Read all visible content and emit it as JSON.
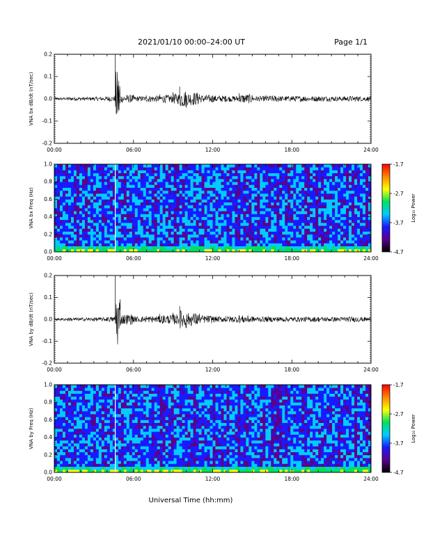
{
  "header": {
    "title": "2021/01/10  00:00–24:00 UT",
    "page": "Page 1/1"
  },
  "x_axis": {
    "ticks": [
      "00:00",
      "06:00",
      "12:00",
      "18:00",
      "24:00"
    ],
    "title": "Universal Time (hh:mm)"
  },
  "colorbar": {
    "label": "Log₁₀ Power",
    "ticks": [
      "-1.7",
      "-2.7",
      "-3.7",
      "-4.7"
    ],
    "range": [
      -4.7,
      -1.7
    ],
    "colors": [
      "#000000",
      "#5a0090",
      "#1a1aff",
      "#00ccff",
      "#00e060",
      "#ffff00",
      "#ff8800",
      "#ff0000"
    ]
  },
  "chart_data": [
    {
      "type": "line",
      "panel": "dbdt_bx",
      "ylabel": "VNA bx dB/dt (nT/sec)",
      "yticks": [
        "0.2",
        "0.1",
        "0.0",
        "-0.1",
        "-0.2"
      ],
      "xlim": [
        0,
        24
      ],
      "ylim": [
        -0.2,
        0.2
      ],
      "series": [
        {
          "values_note": "x in hours UT, y in nT/sec",
          "x": [
            0,
            1,
            2,
            3,
            4,
            4.6,
            4.62,
            5,
            6,
            7,
            8,
            9,
            9.5,
            10,
            11,
            12,
            13,
            14,
            15,
            16,
            17,
            18,
            19,
            20,
            21,
            22,
            23,
            24
          ],
          "y": [
            0.0,
            0.004,
            -0.003,
            0.005,
            0.01,
            0.015,
            0.2,
            -0.02,
            0.01,
            0.015,
            0.02,
            0.03,
            0.055,
            -0.04,
            0.02,
            0.015,
            0.012,
            0.025,
            0.01,
            0.015,
            0.01,
            0.012,
            0.01,
            0.01,
            0.008,
            0.01,
            0.008,
            0.005
          ]
        }
      ]
    },
    {
      "type": "heatmap",
      "panel": "spec_bx",
      "ylabel": "VNA bx Freq (Hz)",
      "yticks": [
        "1.0",
        "0.8",
        "0.6",
        "0.4",
        "0.2",
        "0.0"
      ],
      "xlim": [
        0,
        24
      ],
      "ylim": [
        0.0,
        1.0
      ],
      "zlim": [
        -4.7,
        -1.7
      ]
    },
    {
      "type": "line",
      "panel": "dbdt_by",
      "ylabel": "VNA by dB/dt (nT/sec)",
      "yticks": [
        "0.2",
        "0.1",
        "0.0",
        "-0.1",
        "-0.2"
      ],
      "xlim": [
        0,
        24
      ],
      "ylim": [
        -0.2,
        0.2
      ],
      "series": [
        {
          "x": [
            0,
            1,
            2,
            3,
            4,
            4.6,
            4.62,
            5,
            6,
            7,
            8,
            9,
            9.5,
            10,
            11,
            12,
            13,
            14,
            15,
            16,
            17,
            18,
            19,
            20,
            21,
            22,
            23,
            24
          ],
          "y": [
            0.0,
            0.004,
            -0.003,
            0.005,
            0.01,
            0.015,
            0.2,
            -0.03,
            0.012,
            0.015,
            0.025,
            0.03,
            0.06,
            -0.04,
            0.02,
            0.012,
            0.015,
            0.02,
            0.01,
            0.01,
            0.01,
            0.008,
            0.01,
            0.008,
            0.008,
            0.01,
            0.008,
            0.005
          ]
        }
      ]
    },
    {
      "type": "heatmap",
      "panel": "spec_by",
      "ylabel": "VNA by Freq (Hz)",
      "yticks": [
        "1.0",
        "0.8",
        "0.6",
        "0.4",
        "0.2",
        "0.0"
      ],
      "xlim": [
        0,
        24
      ],
      "ylim": [
        0.0,
        1.0
      ],
      "zlim": [
        -4.7,
        -1.7
      ]
    }
  ]
}
